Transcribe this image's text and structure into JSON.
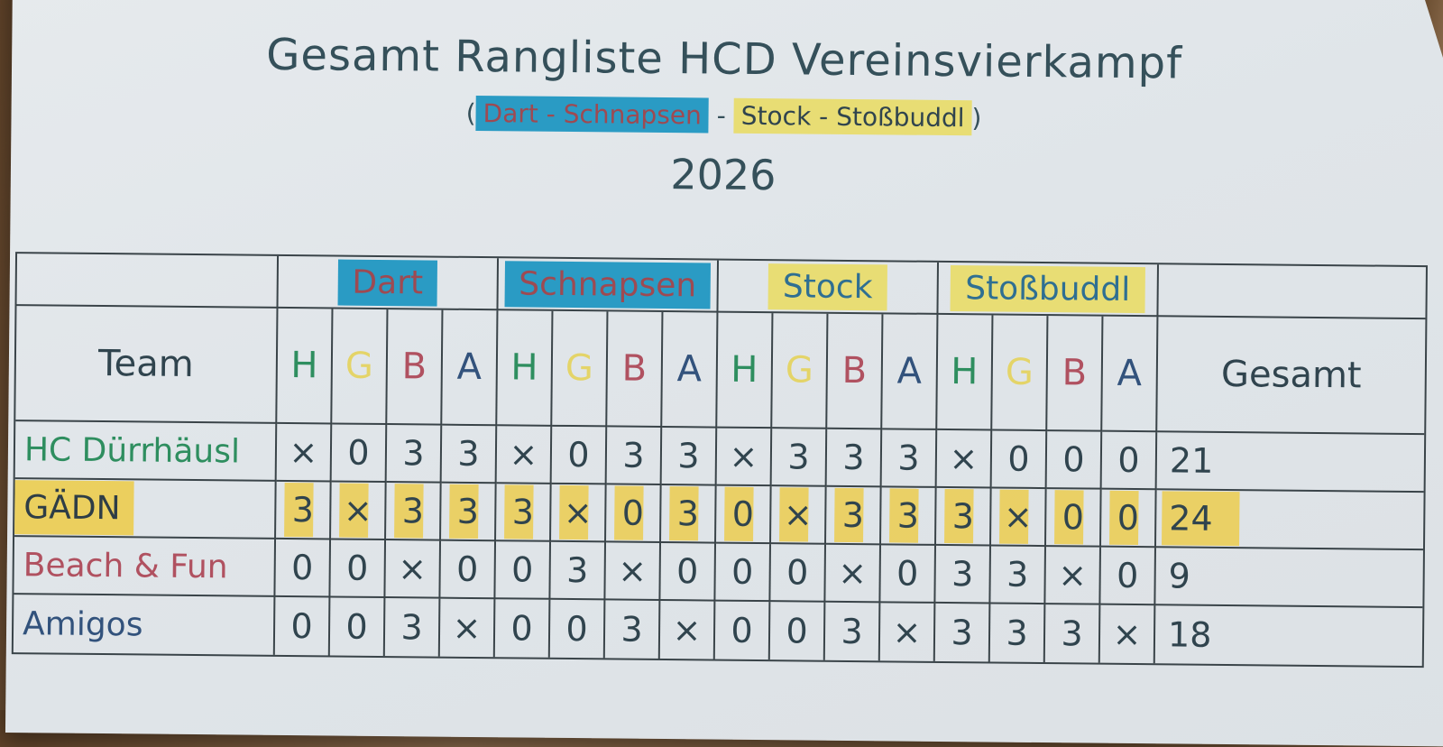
{
  "page": {
    "title": "Gesamt Rangliste HCD Vereinsvierkampf",
    "subtitle": {
      "parts": [
        {
          "text": "("
        },
        {
          "text": "Dart - Schnapsen"
        },
        {
          "text": " - "
        },
        {
          "text": "Stock - Stoßbuddl"
        },
        {
          "text": ")"
        }
      ]
    },
    "year": "2026"
  },
  "table": {
    "team_header": "Team",
    "gesamt_header": "Gesamt",
    "categories": [
      {
        "label": "Dart",
        "highlight": "blue"
      },
      {
        "label": "Schnapsen",
        "highlight": "blue"
      },
      {
        "label": "Stock",
        "highlight": "yellow"
      },
      {
        "label": "Stoßbuddl",
        "highlight": "yellow"
      }
    ],
    "letter_columns": [
      "H",
      "G",
      "B",
      "A"
    ],
    "rows": [
      {
        "team": "HC Dürrhäusl",
        "color": "green",
        "highlighted": false,
        "scores": [
          "×",
          "0",
          "3",
          "3",
          "×",
          "0",
          "3",
          "3",
          "×",
          "3",
          "3",
          "3",
          "×",
          "0",
          "0",
          "0"
        ],
        "gesamt": "21"
      },
      {
        "team": "GÄDN",
        "color": "dark",
        "highlighted": true,
        "scores": [
          "3",
          "×",
          "3",
          "3",
          "3",
          "×",
          "0",
          "3",
          "0",
          "×",
          "3",
          "3",
          "3",
          "×",
          "0",
          "0"
        ],
        "gesamt": "24"
      },
      {
        "team": "Beach & Fun",
        "color": "red",
        "highlighted": false,
        "scores": [
          "0",
          "0",
          "×",
          "0",
          "0",
          "3",
          "×",
          "0",
          "0",
          "0",
          "×",
          "0",
          "3",
          "3",
          "×",
          "0"
        ],
        "gesamt": "9"
      },
      {
        "team": "Amigos",
        "color": "navy",
        "highlighted": false,
        "scores": [
          "0",
          "0",
          "3",
          "×",
          "0",
          "0",
          "3",
          "×",
          "0",
          "0",
          "3",
          "×",
          "3",
          "3",
          "3",
          "×"
        ],
        "gesamt": "18"
      }
    ]
  },
  "colors": {
    "blue_highlight": "#2a9bc4",
    "yellow_highlight_header": "#e8dd74",
    "yellow_highlight_row": "#eccb45",
    "maroon_text": "#9e4a52",
    "teal_text": "#2f6f92",
    "ink": "#30444e",
    "team_green": "#2e8e5f",
    "team_red": "#b05160",
    "team_navy": "#32527c",
    "letter_yellow": "#e4d468"
  }
}
